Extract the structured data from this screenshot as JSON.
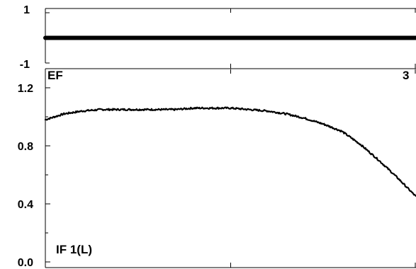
{
  "chart_data": [
    {
      "type": "line",
      "panel_label": "EF",
      "corner_label": "3",
      "ylim": [
        -1,
        1
      ],
      "y_tick_labels": [
        "1",
        "-1"
      ],
      "x": [
        0,
        0.25,
        0.5,
        0.75,
        1
      ],
      "series": [
        {
          "values": [
            0,
            0,
            0,
            0,
            0
          ]
        }
      ]
    },
    {
      "type": "line",
      "panel_label": "IF 1(L)",
      "ylim": [
        0,
        1.2
      ],
      "y_tick_labels": [
        "1.2",
        "0.8",
        "0.4",
        "0.0"
      ],
      "x": [
        0,
        0.05,
        0.1,
        0.15,
        0.2,
        0.25,
        0.3,
        0.35,
        0.4,
        0.45,
        0.5,
        0.55,
        0.6,
        0.65,
        0.7,
        0.75,
        0.8,
        0.85,
        0.9,
        0.95,
        1.0
      ],
      "series": [
        {
          "values": [
            0.98,
            1.02,
            1.04,
            1.05,
            1.05,
            1.05,
            1.05,
            1.05,
            1.06,
            1.06,
            1.06,
            1.05,
            1.04,
            1.02,
            0.99,
            0.95,
            0.9,
            0.81,
            0.7,
            0.58,
            0.45
          ]
        }
      ]
    }
  ]
}
